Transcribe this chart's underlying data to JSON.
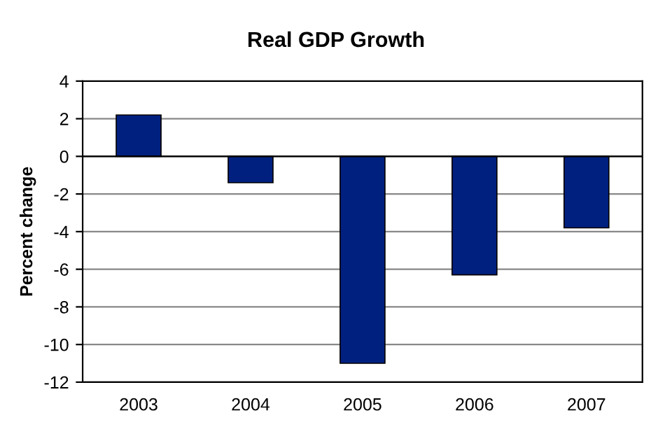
{
  "chart_data": {
    "type": "bar",
    "title": "Real GDP Growth",
    "ylabel": "Percent change",
    "categories": [
      "2003",
      "2004",
      "2005",
      "2006",
      "2007"
    ],
    "values": [
      2.2,
      -1.4,
      -11.0,
      -6.3,
      -3.8
    ],
    "color": "#002080",
    "ylim": [
      -12,
      4
    ],
    "yticks": [
      -12,
      -10,
      -8,
      -6,
      -4,
      -2,
      0,
      2,
      4
    ],
    "grid": "y",
    "legend": false
  }
}
